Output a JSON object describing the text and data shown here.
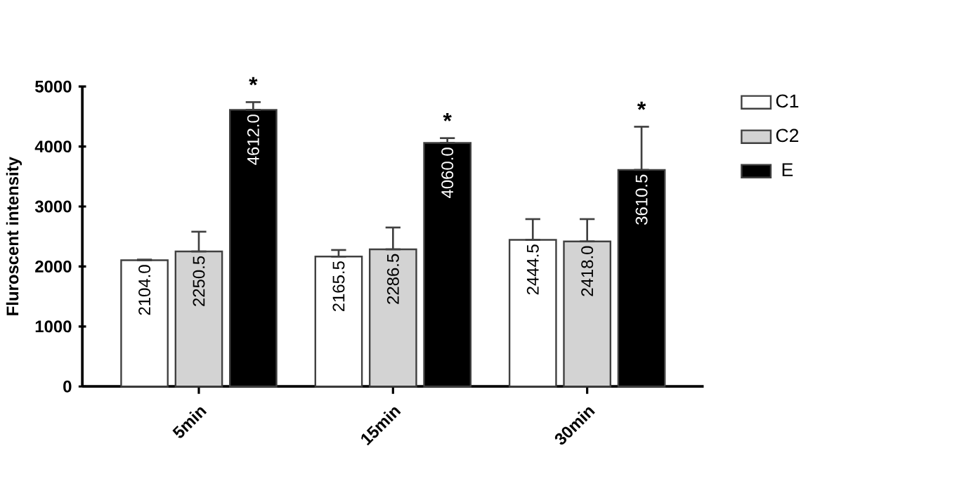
{
  "chart_data": {
    "type": "bar",
    "ylabel": "Fluroscent intensity",
    "categories": [
      "5min",
      "15min",
      "30min"
    ],
    "series": [
      {
        "name": "C1",
        "color": "#ffffff",
        "values": [
          2104.0,
          2165.5,
          2444.5
        ],
        "value_labels": [
          "2104.0",
          "2165.5",
          "2444.5"
        ],
        "errors": [
          [
            2104.0,
            2115
          ],
          [
            2165.5,
            2275
          ],
          [
            2444.5,
            2790
          ]
        ]
      },
      {
        "name": "C2",
        "color": "#d3d3d3",
        "values": [
          2250.5,
          2286.5,
          2418.0
        ],
        "value_labels": [
          "2250.5",
          "2286.5",
          "2418.0"
        ],
        "errors": [
          [
            2250.5,
            2580
          ],
          [
            2286.5,
            2650
          ],
          [
            2418.0,
            2790
          ]
        ]
      },
      {
        "name": "E",
        "color": "#000000",
        "values": [
          4612.0,
          4060.0,
          3610.5
        ],
        "value_labels": [
          "4612.0",
          "4060.0",
          "3610.5"
        ],
        "errors": [
          [
            4612.0,
            4740
          ],
          [
            4060.0,
            4140
          ],
          [
            3610.5,
            4330
          ]
        ]
      }
    ],
    "ylim": [
      0,
      5000
    ],
    "yticks": [
      0,
      1000,
      2000,
      3000,
      4000,
      5000
    ],
    "annotations": [
      "*",
      "*",
      "*"
    ],
    "legend": "top right",
    "grid": false
  }
}
